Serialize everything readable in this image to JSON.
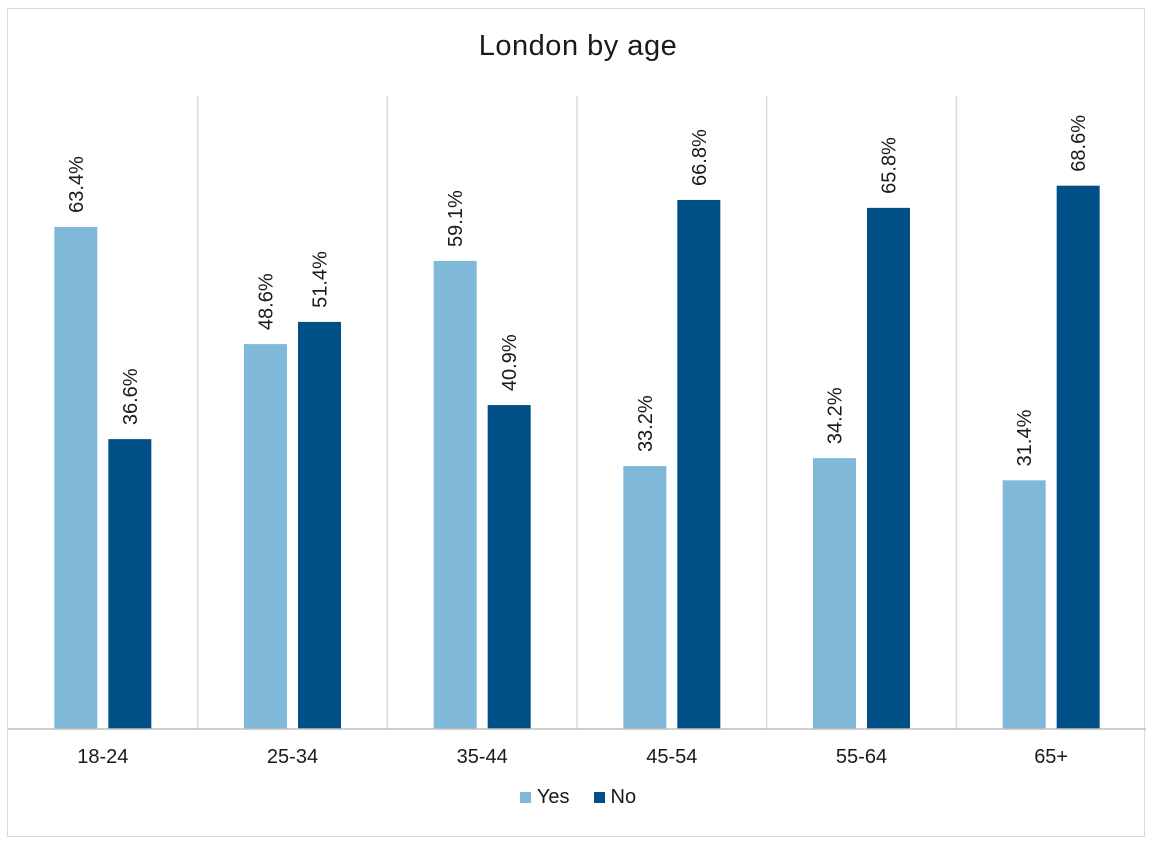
{
  "chart_data": {
    "type": "bar",
    "title": "London by age",
    "xlabel": "",
    "ylabel": "",
    "ylim": [
      0,
      80
    ],
    "categories": [
      "18-24",
      "25-34",
      "35-44",
      "45-54",
      "55-64",
      "65+"
    ],
    "series": [
      {
        "name": "Yes",
        "color": "#7fb8d9",
        "values": [
          63.4,
          48.6,
          59.1,
          33.2,
          34.2,
          31.4
        ],
        "labels": [
          "63.4%",
          "48.6%",
          "59.1%",
          "33.2%",
          "34.2%",
          "31.4%"
        ]
      },
      {
        "name": "No",
        "color": "#004f87",
        "values": [
          36.6,
          51.4,
          40.9,
          66.8,
          65.8,
          68.6
        ],
        "labels": [
          "36.6%",
          "51.4%",
          "40.9%",
          "66.8%",
          "65.8%",
          "68.6%"
        ]
      }
    ],
    "grid": "vertical-separators",
    "legend_position": "bottom"
  }
}
